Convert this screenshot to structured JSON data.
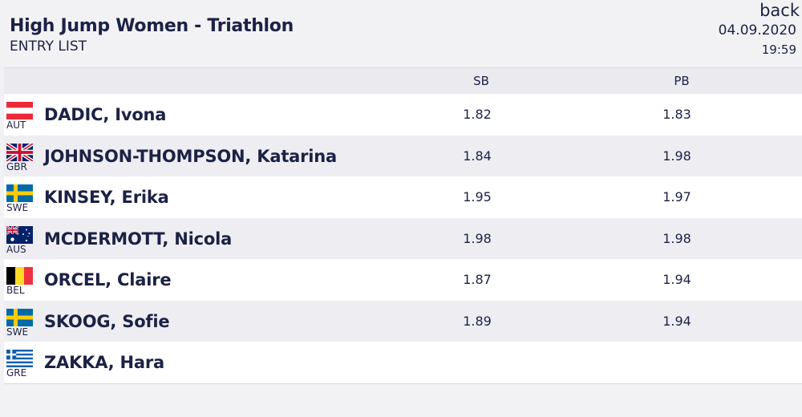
{
  "header": {
    "title": "High Jump Women - Triathlon",
    "subtitle": "ENTRY LIST",
    "back_label": "back",
    "date": "04.09.2020",
    "time": "19:59"
  },
  "table": {
    "columns": {
      "sb": "SB",
      "pb": "PB"
    },
    "rows": [
      {
        "country": "AUT",
        "flag": "aut-flag-icon",
        "name": "DADIC, Ivona",
        "sb": "1.82",
        "pb": "1.83"
      },
      {
        "country": "GBR",
        "flag": "gbr-flag-icon",
        "name": "JOHNSON-THOMPSON, Katarina",
        "sb": "1.84",
        "pb": "1.98"
      },
      {
        "country": "SWE",
        "flag": "swe-flag-icon",
        "name": "KINSEY, Erika",
        "sb": "1.95",
        "pb": "1.97"
      },
      {
        "country": "AUS",
        "flag": "aus-flag-icon",
        "name": "MCDERMOTT, Nicola",
        "sb": "1.98",
        "pb": "1.98"
      },
      {
        "country": "BEL",
        "flag": "bel-flag-icon",
        "name": "ORCEL, Claire",
        "sb": "1.87",
        "pb": "1.94"
      },
      {
        "country": "SWE",
        "flag": "swe-flag-icon",
        "name": "SKOOG, Sofie",
        "sb": "1.89",
        "pb": "1.94"
      },
      {
        "country": "GRE",
        "flag": "gre-flag-icon",
        "name": "ZAKKA, Hara",
        "sb": "",
        "pb": ""
      }
    ]
  }
}
